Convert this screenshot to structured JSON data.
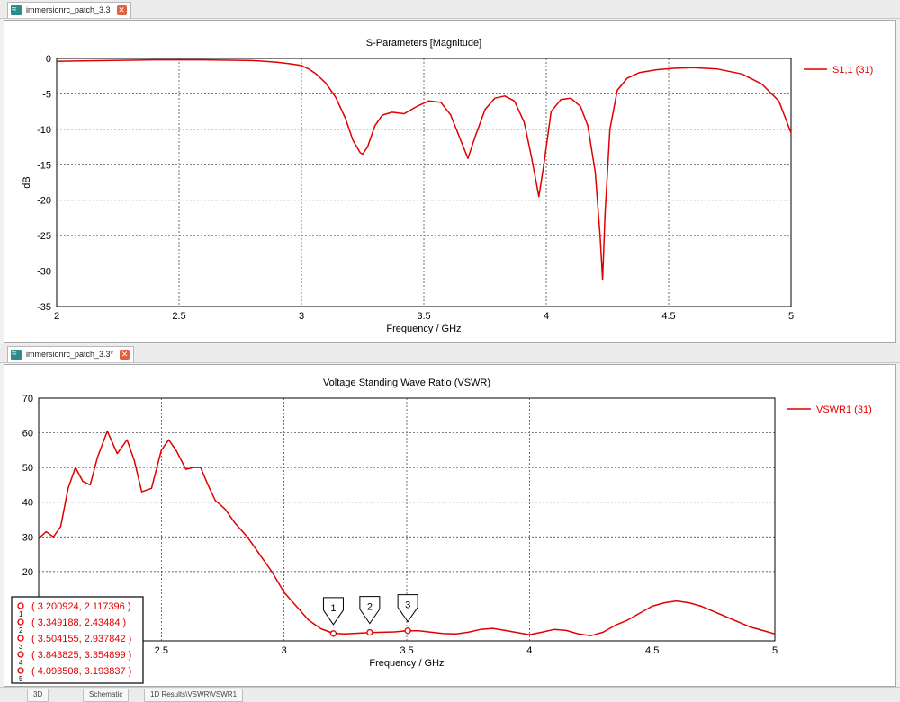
{
  "tabs": [
    {
      "label": "immersionrc_patch_3.3"
    },
    {
      "label": "immersionrc_patch_3.3*"
    }
  ],
  "bottom_tabs": [
    "3D",
    "Schematic",
    "1D Results\\VSWR\\VSWR1"
  ],
  "chart_data": [
    {
      "type": "line",
      "title": "S-Parameters [Magnitude]",
      "xlabel": "Frequency / GHz",
      "ylabel": "dB",
      "xlim": [
        2,
        5
      ],
      "ylim": [
        -35,
        0
      ],
      "xticks": [
        2,
        2.5,
        3,
        3.5,
        4,
        4.5,
        5
      ],
      "yticks": [
        0,
        -5,
        -10,
        -15,
        -20,
        -25,
        -30,
        -35
      ],
      "grid": true,
      "legend": "right",
      "series": [
        {
          "name": "S1,1 (31)",
          "color": "#e00000",
          "x": [
            2.0,
            2.1,
            2.2,
            2.3,
            2.4,
            2.5,
            2.6,
            2.7,
            2.8,
            2.85,
            2.9,
            2.95,
            3.0,
            3.03,
            3.06,
            3.1,
            3.14,
            3.18,
            3.21,
            3.24,
            3.25,
            3.27,
            3.3,
            3.33,
            3.37,
            3.42,
            3.47,
            3.52,
            3.57,
            3.61,
            3.65,
            3.68,
            3.71,
            3.75,
            3.79,
            3.83,
            3.87,
            3.91,
            3.94,
            3.97,
            3.99,
            4.02,
            4.06,
            4.1,
            4.14,
            4.17,
            4.2,
            4.22,
            4.23,
            4.24,
            4.26,
            4.29,
            4.33,
            4.38,
            4.45,
            4.52,
            4.6,
            4.7,
            4.8,
            4.88,
            4.95,
            5.0
          ],
          "y": [
            -0.4,
            -0.35,
            -0.3,
            -0.25,
            -0.2,
            -0.2,
            -0.2,
            -0.25,
            -0.3,
            -0.4,
            -0.55,
            -0.75,
            -1.0,
            -1.5,
            -2.2,
            -3.5,
            -5.5,
            -8.5,
            -11.5,
            -13.3,
            -13.5,
            -12.5,
            -9.5,
            -8.0,
            -7.6,
            -7.8,
            -6.8,
            -6.0,
            -6.2,
            -8.0,
            -11.5,
            -14.1,
            -11.0,
            -7.2,
            -5.6,
            -5.3,
            -6.0,
            -9.0,
            -14.0,
            -19.5,
            -15.0,
            -7.5,
            -5.8,
            -5.6,
            -6.8,
            -9.5,
            -16.0,
            -25.0,
            -31.2,
            -22.0,
            -10.0,
            -4.5,
            -2.8,
            -2.0,
            -1.6,
            -1.4,
            -1.3,
            -1.5,
            -2.2,
            -3.6,
            -6.0,
            -10.5
          ]
        }
      ]
    },
    {
      "type": "line",
      "title": "Voltage Standing Wave Ratio (VSWR)",
      "xlabel": "Frequency / GHz",
      "ylabel": "",
      "xlim": [
        2,
        5
      ],
      "ylim": [
        0,
        70
      ],
      "xticks": [
        2.5,
        3,
        3.5,
        4,
        4.5,
        5
      ],
      "yticks": [
        20,
        30,
        40,
        50,
        60,
        70
      ],
      "grid": true,
      "legend": "right",
      "series": [
        {
          "name": "VSWR1 (31)",
          "color": "#e00000",
          "x": [
            2.0,
            2.03,
            2.06,
            2.09,
            2.12,
            2.15,
            2.18,
            2.21,
            2.24,
            2.28,
            2.32,
            2.36,
            2.39,
            2.42,
            2.46,
            2.5,
            2.53,
            2.56,
            2.6,
            2.63,
            2.66,
            2.69,
            2.72,
            2.76,
            2.8,
            2.85,
            2.9,
            2.95,
            3.0,
            3.05,
            3.1,
            3.15,
            3.2,
            3.25,
            3.3,
            3.35,
            3.4,
            3.45,
            3.5,
            3.55,
            3.6,
            3.65,
            3.7,
            3.75,
            3.8,
            3.85,
            3.9,
            3.95,
            4.0,
            4.05,
            4.1,
            4.15,
            4.2,
            4.25,
            4.3,
            4.35,
            4.4,
            4.45,
            4.5,
            4.55,
            4.6,
            4.65,
            4.7,
            4.75,
            4.8,
            4.85,
            4.9,
            4.95,
            5.0
          ],
          "y": [
            29.5,
            31.5,
            30,
            33,
            44,
            50,
            46,
            45,
            53,
            60.5,
            54,
            58,
            52,
            43,
            44,
            55,
            58,
            55,
            49.5,
            50,
            50,
            45,
            40.5,
            38,
            34,
            30,
            25,
            20,
            14,
            10,
            6,
            3.5,
            2.2,
            2,
            2.2,
            2.4,
            2.5,
            2.6,
            2.9,
            2.9,
            2.5,
            2.1,
            2,
            2.5,
            3.3,
            3.6,
            3.0,
            2.4,
            1.8,
            2.5,
            3.3,
            3.0,
            2.0,
            1.5,
            2.5,
            4.5,
            6,
            8,
            10,
            11,
            11.5,
            11,
            10,
            8.5,
            7,
            5.5,
            4,
            3,
            2
          ]
        }
      ],
      "markers": [
        {
          "id": "1",
          "x": 3.200924,
          "y": 2.117396,
          "label": "( 3.200924, 2.117396 )"
        },
        {
          "id": "2",
          "x": 3.349188,
          "y": 2.43484,
          "label": "( 3.349188, 2.43484 )"
        },
        {
          "id": "3",
          "x": 3.504155,
          "y": 2.937842,
          "label": "( 3.504155, 2.937842 )"
        },
        {
          "id": "4",
          "x": 3.843825,
          "y": 3.354899,
          "label": "( 3.843825, 3.354899 )"
        },
        {
          "id": "5",
          "x": 4.098508,
          "y": 3.193837,
          "label": "( 4.098508, 3.193837 )"
        }
      ]
    }
  ]
}
